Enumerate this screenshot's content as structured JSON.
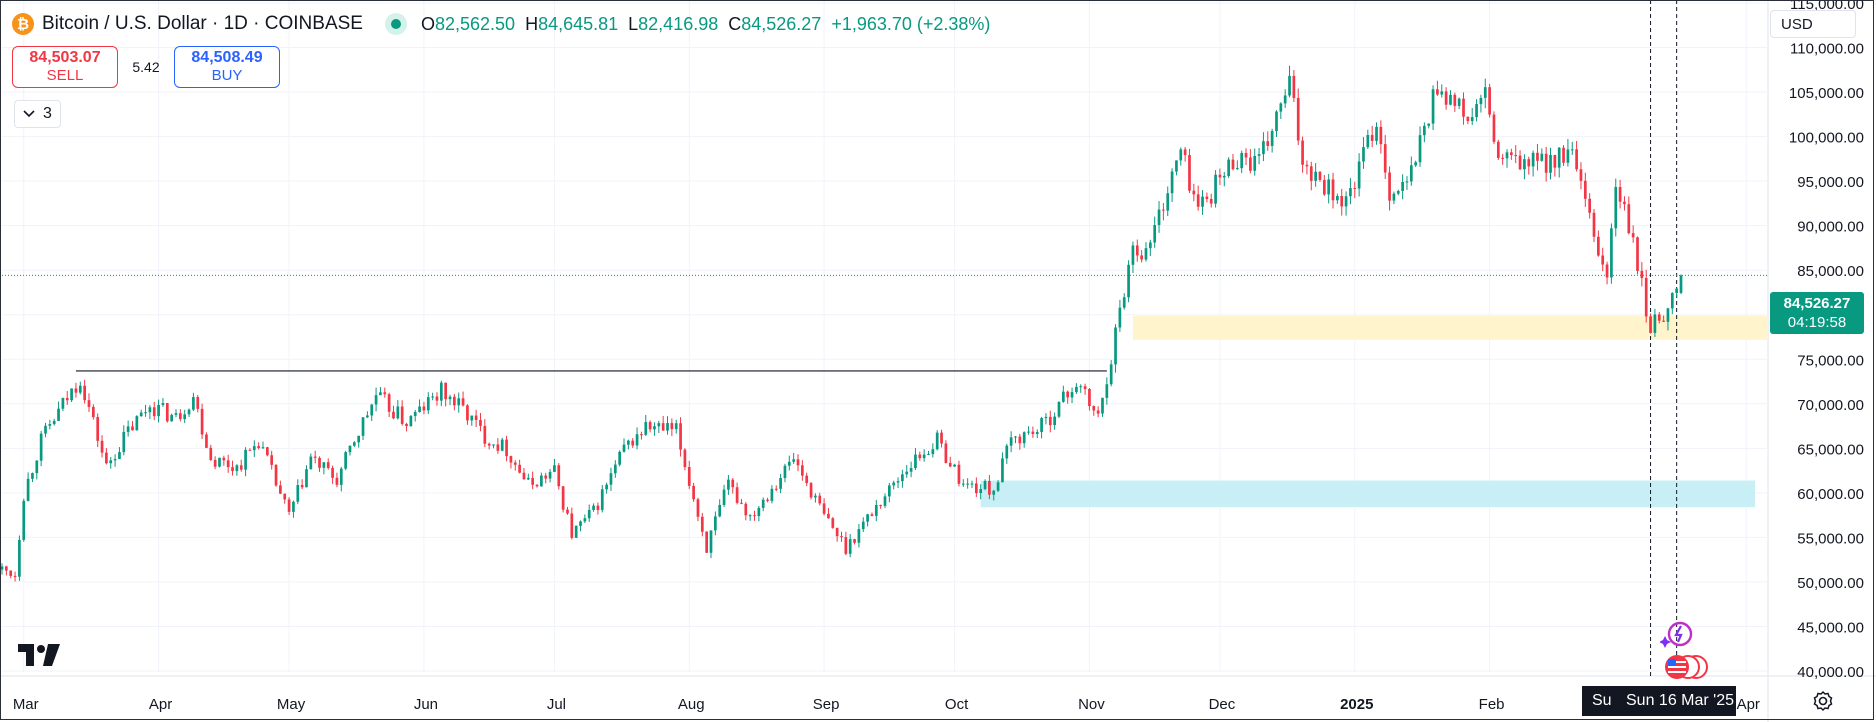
{
  "header": {
    "symbol": "Bitcoin / U.S. Dollar · 1D · COINBASE",
    "icon": "bitcoin-icon",
    "ohlc": {
      "open_key": "O",
      "open": "82,562.50",
      "high_key": "H",
      "high": "84,645.81",
      "low_key": "L",
      "low": "82,416.98",
      "close_key": "C",
      "close": "84,526.27",
      "change": "+1,963.70 (+2.38%)"
    }
  },
  "trade": {
    "sell_price": "84,503.07",
    "sell_label": "SELL",
    "spread": "5.42",
    "buy_price": "84,508.49",
    "buy_label": "BUY"
  },
  "indicators_toggle": {
    "icon": "chevron-down-icon",
    "count": "3"
  },
  "currency": "USD",
  "last_price": {
    "value": "84,526.27",
    "countdown": "04:19:58"
  },
  "crosshair_date": "Sun 16 Mar '25",
  "crosshair_date_left": "Su",
  "colors": {
    "up": "#089981",
    "down": "#f23645",
    "demand_zone": "#fff4cc",
    "support_zone": "#c9eff6",
    "line": "#131722"
  },
  "chart_data": {
    "type": "candlestick",
    "y_axis": {
      "min": 40000,
      "max": 115000,
      "step": 5000,
      "scale": "linear",
      "position": "right",
      "tick_labels": [
        "115,000.00",
        "110,000.00",
        "105,000.00",
        "100,000.00",
        "95,000.00",
        "90,000.00",
        "85,000.00",
        "80,000.00",
        "75,000.00",
        "70,000.00",
        "65,000.00",
        "60,000.00",
        "55,000.00",
        "50,000.00",
        "45,000.00",
        "40,000.00"
      ]
    },
    "x_axis": {
      "start": "2024-02-25",
      "end": "2025-04-06",
      "tick_labels": [
        {
          "date": "2024-03-01",
          "label": "Mar"
        },
        {
          "date": "2024-04-01",
          "label": "Apr"
        },
        {
          "date": "2024-05-01",
          "label": "May"
        },
        {
          "date": "2024-06-01",
          "label": "Jun"
        },
        {
          "date": "2024-07-01",
          "label": "Jul"
        },
        {
          "date": "2024-08-01",
          "label": "Aug"
        },
        {
          "date": "2024-09-01",
          "label": "Sep"
        },
        {
          "date": "2024-10-01",
          "label": "Oct"
        },
        {
          "date": "2024-11-01",
          "label": "Nov"
        },
        {
          "date": "2024-12-01",
          "label": "Dec"
        },
        {
          "date": "2025-01-01",
          "label": "2025"
        },
        {
          "date": "2025-02-01",
          "label": "Feb"
        },
        {
          "date": "2025-04-01",
          "label": "Apr"
        }
      ]
    },
    "grid": true,
    "price_path": [
      [
        "2024-02-25",
        51500
      ],
      [
        "2024-02-28",
        51000
      ],
      [
        "2024-03-01",
        60000
      ],
      [
        "2024-03-05",
        66000
      ],
      [
        "2024-03-10",
        70000
      ],
      [
        "2024-03-14",
        73000
      ],
      [
        "2024-03-20",
        63000
      ],
      [
        "2024-03-25",
        67000
      ],
      [
        "2024-03-30",
        70000
      ],
      [
        "2024-04-05",
        68500
      ],
      [
        "2024-04-09",
        71000
      ],
      [
        "2024-04-13",
        64000
      ],
      [
        "2024-04-19",
        63000
      ],
      [
        "2024-04-24",
        66000
      ],
      [
        "2024-05-01",
        57500
      ],
      [
        "2024-05-06",
        64000
      ],
      [
        "2024-05-12",
        61500
      ],
      [
        "2024-05-16",
        66000
      ],
      [
        "2024-05-21",
        71000
      ],
      [
        "2024-05-28",
        68000
      ],
      [
        "2024-06-05",
        71500
      ],
      [
        "2024-06-10",
        69500
      ],
      [
        "2024-06-15",
        66500
      ],
      [
        "2024-06-20",
        65000
      ],
      [
        "2024-06-25",
        61000
      ],
      [
        "2024-07-01",
        62500
      ],
      [
        "2024-07-05",
        55500
      ],
      [
        "2024-07-10",
        58000
      ],
      [
        "2024-07-17",
        65000
      ],
      [
        "2024-07-22",
        67500
      ],
      [
        "2024-07-29",
        67000
      ],
      [
        "2024-08-05",
        54000
      ],
      [
        "2024-08-10",
        61000
      ],
      [
        "2024-08-15",
        57500
      ],
      [
        "2024-08-25",
        64000
      ],
      [
        "2024-09-01",
        57500
      ],
      [
        "2024-09-06",
        54000
      ],
      [
        "2024-09-12",
        58000
      ],
      [
        "2024-09-20",
        63000
      ],
      [
        "2024-09-27",
        66000
      ],
      [
        "2024-10-03",
        61000
      ],
      [
        "2024-10-10",
        60500
      ],
      [
        "2024-10-14",
        66000
      ],
      [
        "2024-10-21",
        67500
      ],
      [
        "2024-10-29",
        72500
      ],
      [
        "2024-11-03",
        68500
      ],
      [
        "2024-11-06",
        75500
      ],
      [
        "2024-11-11",
        88000
      ],
      [
        "2024-11-14",
        87000
      ],
      [
        "2024-11-22",
        98500
      ],
      [
        "2024-11-26",
        92000
      ],
      [
        "2024-12-05",
        98000
      ],
      [
        "2024-12-10",
        97000
      ],
      [
        "2024-12-17",
        106000
      ],
      [
        "2024-12-20",
        97500
      ],
      [
        "2024-12-30",
        92500
      ],
      [
        "2025-01-06",
        102000
      ],
      [
        "2025-01-09",
        94000
      ],
      [
        "2025-01-13",
        94500
      ],
      [
        "2025-01-20",
        106000
      ],
      [
        "2025-01-27",
        102000
      ],
      [
        "2025-01-31",
        104500
      ],
      [
        "2025-02-03",
        97500
      ],
      [
        "2025-02-10",
        97000
      ],
      [
        "2025-02-20",
        98000
      ],
      [
        "2025-02-25",
        88500
      ],
      [
        "2025-02-28",
        84500
      ],
      [
        "2025-03-02",
        94500
      ],
      [
        "2025-03-05",
        90000
      ],
      [
        "2025-03-10",
        78500
      ],
      [
        "2025-03-13",
        80500
      ],
      [
        "2025-03-16",
        82600
      ],
      [
        "2025-03-17",
        84526
      ]
    ],
    "annotations": [
      {
        "type": "horizontal-segment",
        "from": "2024-03-13",
        "to": "2024-11-05",
        "price": 73800
      },
      {
        "type": "zone",
        "name": "demand-zone",
        "from": "2024-11-11",
        "to": "2025-04-06",
        "low": 77300,
        "high": 80000
      },
      {
        "type": "zone",
        "name": "support-zone",
        "from": "2024-10-07",
        "to": "2025-04-03",
        "low": 58500,
        "high": 61500
      },
      {
        "type": "vertical-dashed",
        "date": "2025-03-10"
      },
      {
        "type": "vertical-dashed",
        "date": "2025-03-16"
      },
      {
        "type": "last-price-line",
        "price": 84526.27
      }
    ]
  }
}
